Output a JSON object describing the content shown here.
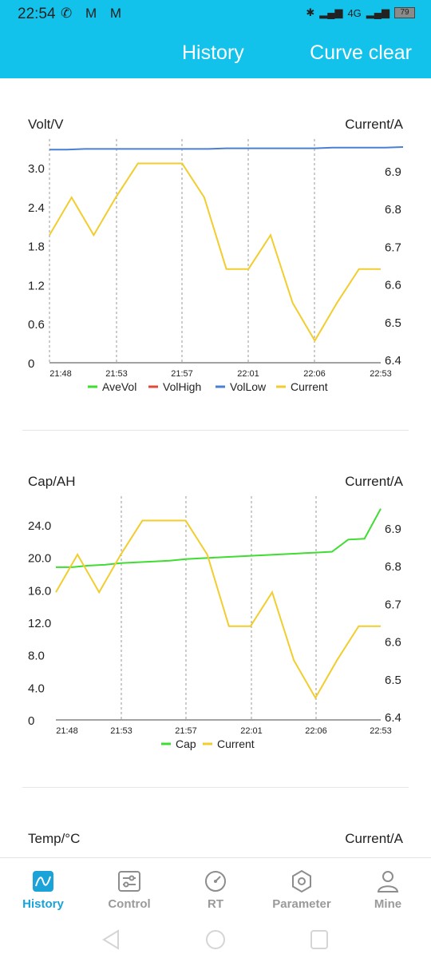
{
  "status_bar": {
    "time": "22:54",
    "battery": "79",
    "network": "4G"
  },
  "header": {
    "title": "History",
    "action": "Curve clear"
  },
  "charts": [
    {
      "left_label": "Volt/V",
      "right_label": "Current/A",
      "left_ticks": [
        "0",
        "0.6",
        "1.2",
        "1.8",
        "2.4",
        "3.0"
      ],
      "right_ticks": [
        "6.4",
        "6.5",
        "6.6",
        "6.7",
        "6.8",
        "6.9"
      ],
      "x_ticks": [
        "21:48",
        "21:53",
        "21:57",
        "22:01",
        "22:06",
        "22:53"
      ],
      "legend": [
        "AveVol",
        "VolHigh",
        "VolLow",
        "Current"
      ]
    },
    {
      "left_label": "Cap/AH",
      "right_label": "Current/A",
      "left_ticks": [
        "0",
        "4.0",
        "8.0",
        "12.0",
        "16.0",
        "20.0",
        "24.0"
      ],
      "right_ticks": [
        "6.4",
        "6.5",
        "6.6",
        "6.7",
        "6.8",
        "6.9"
      ],
      "x_ticks": [
        "21:48",
        "21:53",
        "21:57",
        "22:01",
        "22:06",
        "22:53"
      ],
      "legend": [
        "Cap",
        "Current"
      ]
    },
    {
      "left_label": "Temp/°C",
      "right_label": "Current/A"
    }
  ],
  "chart_data": [
    {
      "type": "line",
      "x": [
        "21:48",
        "21:49",
        "21:50",
        "21:51",
        "21:53",
        "21:54",
        "21:55",
        "21:56",
        "21:57",
        "21:58",
        "21:59",
        "22:00",
        "22:01",
        "22:02",
        "22:03",
        "22:04",
        "22:05",
        "22:06",
        "22:07",
        "22:08",
        "22:53"
      ],
      "series": [
        {
          "name": "VolLow",
          "axis": "left",
          "color": "#4a7fd4",
          "values": [
            3.28,
            3.28,
            3.29,
            3.29,
            3.29,
            3.29,
            3.29,
            3.29,
            3.29,
            3.29,
            3.3,
            3.3,
            3.3,
            3.3,
            3.3,
            3.3,
            3.31,
            3.31,
            3.31,
            3.31,
            3.32
          ]
        },
        {
          "name": "Current",
          "axis": "right",
          "color": "#f2cd2e",
          "values": [
            6.73,
            6.83,
            6.73,
            6.83,
            6.92,
            6.92,
            6.92,
            6.83,
            6.64,
            6.64,
            6.73,
            6.55,
            6.45,
            6.55,
            6.64,
            6.64,
            6.64,
            6.64,
            6.64,
            6.64,
            6.64
          ]
        }
      ],
      "left_ylim": [
        0,
        3.0
      ],
      "right_ylim": [
        6.4,
        6.9
      ],
      "colors": {
        "AveVol": "#3fdc32",
        "VolHigh": "#e0483a",
        "VolLow": "#4a7fd4",
        "Current": "#f2cd2e"
      }
    },
    {
      "type": "line",
      "x": [
        "21:48",
        "21:49",
        "21:50",
        "21:51",
        "21:53",
        "21:54",
        "21:55",
        "21:56",
        "21:57",
        "21:58",
        "21:59",
        "22:00",
        "22:01",
        "22:02",
        "22:03",
        "22:04",
        "22:05",
        "22:06",
        "22:07",
        "22:08",
        "22:53"
      ],
      "series": [
        {
          "name": "Cap",
          "axis": "left",
          "color": "#3fdc32",
          "values": [
            18.8,
            18.8,
            19.0,
            19.1,
            19.3,
            19.4,
            19.5,
            19.6,
            19.8,
            19.9,
            20.0,
            20.1,
            20.2,
            20.3,
            20.4,
            20.5,
            20.6,
            20.7,
            22.2,
            22.3,
            26.0
          ]
        },
        {
          "name": "Current",
          "axis": "right",
          "color": "#f2cd2e",
          "values": [
            6.73,
            6.83,
            6.73,
            6.83,
            6.92,
            6.92,
            6.92,
            6.83,
            6.64,
            6.64,
            6.73,
            6.55,
            6.45,
            6.55,
            6.64,
            6.64,
            6.64,
            6.64,
            6.64,
            6.64,
            6.64
          ]
        }
      ],
      "left_ylim": [
        0,
        24.0
      ],
      "right_ylim": [
        6.4,
        6.9
      ],
      "colors": {
        "Cap": "#3fdc32",
        "Current": "#f2cd2e"
      }
    }
  ],
  "bottom_nav": [
    {
      "label": "History",
      "icon": "chart-line-icon",
      "active": true
    },
    {
      "label": "Control",
      "icon": "sliders-icon",
      "active": false
    },
    {
      "label": "RT",
      "icon": "gauge-icon",
      "active": false
    },
    {
      "label": "Parameter",
      "icon": "hexagon-nut-icon",
      "active": false
    },
    {
      "label": "Mine",
      "icon": "user-icon",
      "active": false
    }
  ],
  "accent_color": "#12c2ea",
  "active_color": "#1aa3d9"
}
